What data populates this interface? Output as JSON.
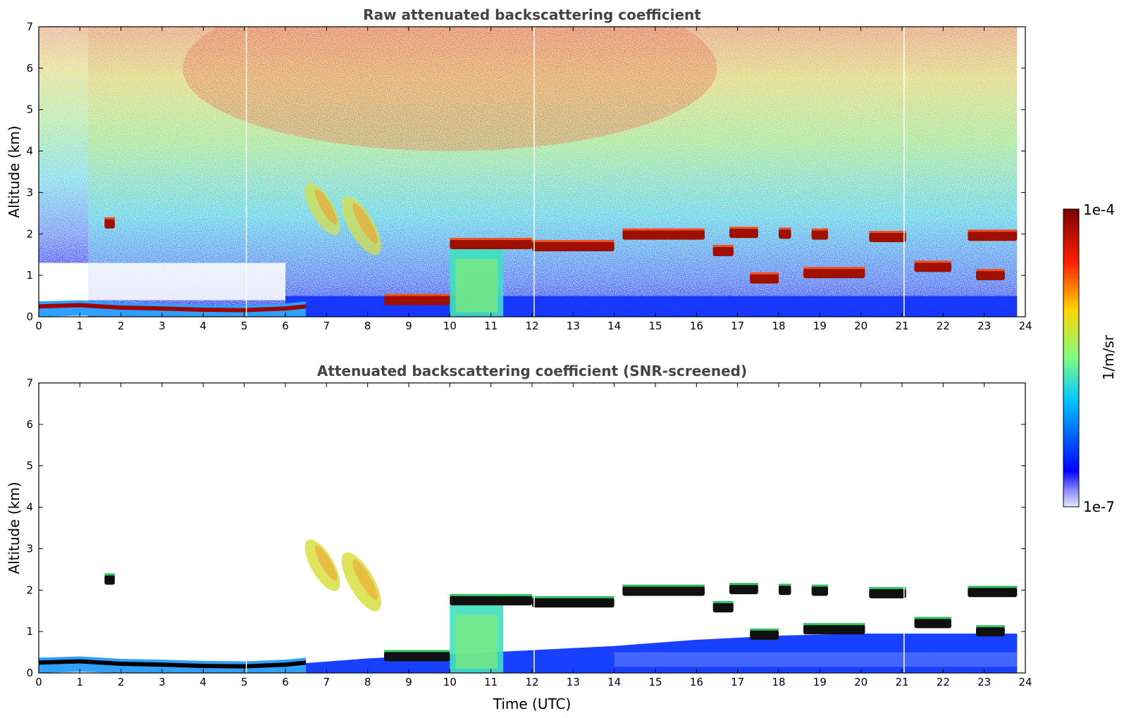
{
  "chart_data": [
    {
      "type": "heatmap",
      "title": "Raw attenuated backscattering coefficient",
      "xlabel": "",
      "ylabel": "Altitude (km)",
      "xlim": [
        0,
        24
      ],
      "ylim": [
        0,
        7
      ],
      "x_ticks": [
        "0",
        "1",
        "2",
        "3",
        "4",
        "5",
        "6",
        "7",
        "8",
        "9",
        "10",
        "11",
        "12",
        "13",
        "14",
        "15",
        "16",
        "17",
        "18",
        "19",
        "20",
        "21",
        "22",
        "23",
        "24"
      ],
      "y_ticks": [
        "0",
        "1",
        "2",
        "3",
        "4",
        "5",
        "6",
        "7"
      ],
      "screened": false,
      "features": {
        "boundary_layer": [
          [
            0,
            0.25
          ],
          [
            1,
            0.28
          ],
          [
            2,
            0.22
          ],
          [
            3,
            0.2
          ],
          [
            4,
            0.17
          ],
          [
            5,
            0.16
          ],
          [
            6,
            0.2
          ],
          [
            6.5,
            0.25
          ]
        ],
        "cloud_layers": [
          {
            "x": [
              10.0,
              12.0
            ],
            "alt": 1.75
          },
          {
            "x": [
              12.0,
              14.0
            ],
            "alt": 1.7
          },
          {
            "x": [
              14.2,
              16.2
            ],
            "alt": 1.98
          },
          {
            "x": [
              16.8,
              17.5
            ],
            "alt": 2.02
          },
          {
            "x": [
              18.0,
              18.3
            ],
            "alt": 2.0
          },
          {
            "x": [
              18.8,
              19.2
            ],
            "alt": 1.98
          },
          {
            "x": [
              20.2,
              21.1
            ],
            "alt": 1.92
          },
          {
            "x": [
              22.6,
              23.8
            ],
            "alt": 1.95
          },
          {
            "x": [
              16.4,
              16.9
            ],
            "alt": 1.58
          },
          {
            "x": [
              17.3,
              18.0
            ],
            "alt": 0.92
          },
          {
            "x": [
              18.6,
              20.1
            ],
            "alt": 1.05
          },
          {
            "x": [
              21.3,
              22.2
            ],
            "alt": 1.2
          },
          {
            "x": [
              22.8,
              23.5
            ],
            "alt": 1.0
          },
          {
            "x": [
              8.4,
              10.0
            ],
            "alt": 0.4
          },
          {
            "x": [
              1.6,
              1.85
            ],
            "alt": 2.25
          }
        ],
        "aerosol_plumes": [
          {
            "x": [
              6.4,
              7.4
            ],
            "alt": [
              1.9,
              3.3
            ]
          },
          {
            "x": [
              7.3,
              8.4
            ],
            "alt": [
              1.4,
              3.0
            ]
          }
        ],
        "precipitation": {
          "x": [
            10.0,
            11.3
          ],
          "alt": [
            0.0,
            1.8
          ]
        }
      }
    },
    {
      "type": "heatmap",
      "title": "Attenuated backscattering coefficient (SNR-screened)",
      "xlabel": "Time (UTC)",
      "ylabel": "Altitude (km)",
      "xlim": [
        0,
        24
      ],
      "ylim": [
        0,
        7
      ],
      "x_ticks": [
        "0",
        "1",
        "2",
        "3",
        "4",
        "5",
        "6",
        "7",
        "8",
        "9",
        "10",
        "11",
        "12",
        "13",
        "14",
        "15",
        "16",
        "17",
        "18",
        "19",
        "20",
        "21",
        "22",
        "23",
        "24"
      ],
      "y_ticks": [
        "0",
        "1",
        "2",
        "3",
        "4",
        "5",
        "6",
        "7"
      ],
      "screened": true
    }
  ],
  "colorbar": {
    "label": "1/m/sr",
    "max_label": "1e-4",
    "min_label": "1e-7",
    "scale": "log",
    "range": [
      1e-07,
      0.0001
    ],
    "colormap": "jet",
    "colors": [
      "#e8e8ff",
      "#0000ff",
      "#00c8ff",
      "#7fff7f",
      "#ffd700",
      "#ff2000",
      "#7f0000"
    ]
  }
}
